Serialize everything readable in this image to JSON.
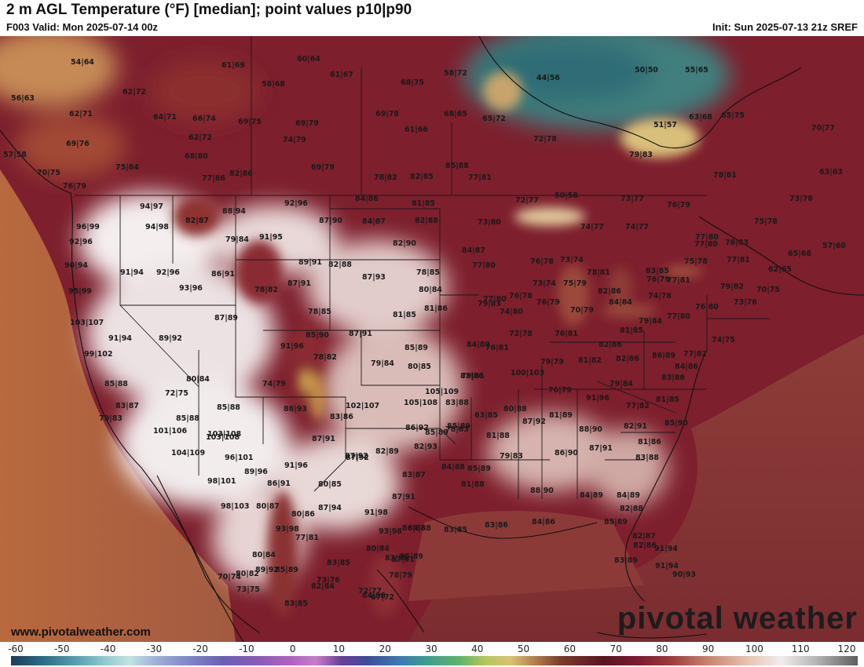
{
  "header": {
    "title": "2 m AGL Temperature (°F) [median]; point values p10|p90",
    "valid": "F003 Valid: Mon 2025-07-14 00z",
    "init": "Init: Sun 2025-07-13 21z SREF"
  },
  "watermark": {
    "website": "www.pivotalweather.com",
    "brand": "pivotal weather"
  },
  "colorbar": {
    "ticks": [
      "-60",
      "-50",
      "-40",
      "-30",
      "-20",
      "-10",
      "0",
      "10",
      "20",
      "30",
      "40",
      "50",
      "60",
      "70",
      "80",
      "90",
      "100",
      "110",
      "120"
    ]
  },
  "point_values": [
    "54|64",
    "61|69",
    "60|64",
    "61|67",
    "58|72",
    "44|56",
    "56|63",
    "62|72",
    "58|68",
    "68|75",
    "50|50",
    "55|65",
    "62|71",
    "64|71",
    "66|74",
    "69|75",
    "69|79",
    "69|78",
    "61|66",
    "68|65",
    "65|72",
    "63|68",
    "65|75",
    "70|77",
    "69|76",
    "62|72",
    "74|79",
    "72|78",
    "51|57",
    "57|58",
    "68|80",
    "75|84",
    "69|79",
    "79|83",
    "70|75",
    "77|86",
    "82|86",
    "78|82",
    "82|85",
    "77|81",
    "78|81",
    "63|63",
    "76|79",
    "72|77",
    "50|58",
    "73|77",
    "76|79",
    "77|80",
    "73|78",
    "92|96",
    "84|86",
    "81|85",
    "85|88",
    "94|97",
    "88|94",
    "82|87",
    "87|90",
    "84|87",
    "82|88",
    "73|80",
    "74|77",
    "74|77",
    "75|78",
    "96|99",
    "94|98",
    "91|95",
    "79|84",
    "92|96",
    "82|90",
    "84|87",
    "77|80",
    "73|74",
    "77|80",
    "78|83",
    "65|68",
    "57|60",
    "90|94",
    "91|94",
    "92|96",
    "89|91",
    "82|88",
    "76|78",
    "78|81",
    "83|85",
    "75|78",
    "77|81",
    "62|65",
    "86|91",
    "87|93",
    "78|85",
    "73|74",
    "75|79",
    "76|79",
    "77|81",
    "95|99",
    "93|96",
    "78|82",
    "87|91",
    "80|84",
    "76|78",
    "82|86",
    "74|78",
    "79|82",
    "70|75",
    "87|89",
    "78|85",
    "79|83",
    "77|80",
    "76|79",
    "84|84",
    "76|80",
    "73|76",
    "103|107",
    "81|85",
    "81|86",
    "74|80",
    "70|79",
    "79|84",
    "77|80",
    "91|94",
    "89|92",
    "85|90",
    "87|91",
    "72|78",
    "76|81",
    "81|85",
    "74|75",
    "99|102",
    "91|96",
    "85|89",
    "84|89",
    "76|81",
    "82|86",
    "78|82",
    "79|84",
    "80|85",
    "79|79",
    "81|82",
    "82|86",
    "86|89",
    "82|86",
    "83|86",
    "77|82",
    "84|86",
    "80|84",
    "79|81",
    "100|103",
    "76|79",
    "79|84",
    "85|88",
    "74|79",
    "105|109",
    "91|96",
    "81|85",
    "79|83",
    "83|87",
    "72|75",
    "102|107",
    "105|108",
    "83|88",
    "80|88",
    "77|82",
    "85|88",
    "88|93",
    "63|85",
    "87|92",
    "81|89",
    "85|90",
    "85|88",
    "103|108",
    "83|86",
    "86|92",
    "85|89",
    "85|89",
    "88|90",
    "82|91",
    "81|86",
    "101|106",
    "104|109",
    "103|108",
    "87|91",
    "82|89",
    "82|93",
    "78|83",
    "87|92",
    "81|88",
    "86|90",
    "87|91",
    "96|101",
    "87|92",
    "79|83",
    "83|88",
    "89|96",
    "91|96",
    "83|87",
    "84|88",
    "85|89",
    "98|101",
    "86|91",
    "80|85",
    "87|91",
    "81|88",
    "88|90",
    "84|89",
    "84|89",
    "98|103",
    "80|87",
    "87|94",
    "84|88",
    "82|88",
    "80|86",
    "91|98",
    "86|88",
    "83|85",
    "83|86",
    "84|86",
    "85|89",
    "93|98",
    "93|98",
    "80|84",
    "77|81",
    "82|87",
    "80|84",
    "83|85",
    "82|86",
    "91|94",
    "83|89",
    "91|94",
    "89|92",
    "85|89",
    "85|89",
    "73|76",
    "83|85",
    "87|91",
    "82|84",
    "72|77",
    "70|74",
    "80|82",
    "84|88",
    "90|93",
    "67|72",
    "83|85",
    "78|79",
    "73|75"
  ]
}
